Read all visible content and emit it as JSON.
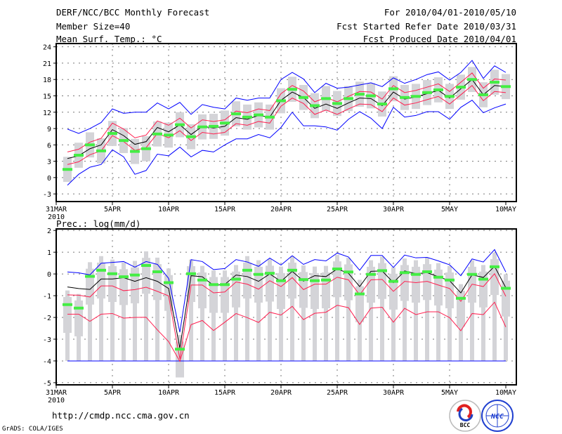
{
  "header": {
    "title": "DERF/NCC/BCC Monthly Forecast",
    "member_size": "Member Size=40",
    "variable": "Mean Surf. Temp.: °C",
    "period": "For 2010/04/01-2010/05/10",
    "fcst_started": "Fcst Started Refer Date 2010/03/31",
    "fcst_produced": "Fcst Produced Date 2010/04/01"
  },
  "footer": {
    "url": "http://cmdp.ncc.cma.gov.cn",
    "credit": "GrADS: COLA/IGES",
    "logo_bcc": "BCC",
    "logo_ncc": "NCC"
  },
  "colors": {
    "max_min": "#0000ff",
    "spread": "#ff1f4f",
    "mean": "#000000",
    "observed": "#44ee44",
    "box": "#d4d4d8"
  },
  "chart_data": [
    {
      "type": "line",
      "title": "Mean Surf. Temp.: °C",
      "xlabel": "",
      "ylabel": "°C",
      "x_ticks": [
        "31MAR",
        "5APR",
        "10APR",
        "15APR",
        "20APR",
        "25APR",
        "30APR",
        "5MAY",
        "10MAY"
      ],
      "x_year": "2010",
      "y_ticks": [
        "24",
        "21",
        "18",
        "15",
        "12",
        "9",
        "6",
        "3",
        "0",
        "-3"
      ],
      "ylim": [
        -4.4,
        24.6
      ],
      "grid": true,
      "x_days": "2010-04-01 to 2010-05-10 (40 days)",
      "gray_bar_halfrange": 2.3,
      "series": [
        {
          "name": "max",
          "color": "#0000ff",
          "values": [
            8.9,
            8.1,
            9.0,
            10.1,
            12.6,
            11.8,
            12.0,
            12.0,
            13.7,
            12.6,
            13.8,
            11.6,
            13.4,
            12.9,
            12.6,
            14.6,
            14.2,
            14.6,
            14.6,
            18.0,
            19.3,
            18.1,
            15.6,
            17.3,
            16.4,
            16.6,
            17.0,
            17.4,
            16.7,
            18.3,
            17.3,
            18.0,
            18.9,
            19.4,
            17.9,
            19.3,
            21.5,
            18.2,
            20.5,
            19.3
          ]
        },
        {
          "name": "upper",
          "color": "#ff1f4f",
          "values": [
            4.7,
            5.2,
            6.5,
            7.2,
            10.0,
            8.9,
            7.3,
            7.8,
            10.4,
            9.6,
            10.9,
            9.1,
            10.6,
            10.3,
            10.6,
            12.2,
            11.9,
            12.6,
            12.3,
            15.4,
            16.9,
            15.9,
            13.9,
            14.7,
            13.9,
            14.9,
            15.8,
            15.7,
            14.4,
            16.9,
            15.6,
            16.0,
            16.6,
            17.2,
            15.8,
            17.5,
            19.2,
            16.4,
            18.1,
            17.9
          ]
        },
        {
          "name": "mean",
          "color": "#000000",
          "values": [
            3.5,
            4.0,
            5.3,
            6.0,
            8.8,
            7.7,
            6.1,
            6.6,
            9.2,
            8.4,
            9.7,
            7.9,
            9.4,
            9.1,
            9.4,
            11.0,
            10.7,
            11.4,
            11.1,
            14.2,
            15.7,
            14.7,
            12.7,
            13.5,
            12.7,
            13.7,
            14.6,
            14.5,
            13.2,
            15.7,
            14.4,
            14.8,
            15.4,
            16.0,
            14.6,
            16.3,
            18.0,
            15.2,
            16.9,
            16.7
          ]
        },
        {
          "name": "lower",
          "color": "#ff1f4f",
          "values": [
            2.4,
            2.9,
            4.2,
            4.9,
            7.7,
            6.6,
            5.0,
            5.5,
            8.1,
            7.3,
            8.6,
            6.8,
            8.3,
            8.0,
            8.3,
            9.9,
            9.6,
            10.3,
            10.0,
            13.1,
            14.6,
            13.6,
            11.6,
            12.4,
            11.6,
            12.6,
            13.5,
            13.4,
            12.1,
            14.6,
            13.3,
            13.7,
            14.3,
            14.9,
            13.5,
            15.2,
            16.9,
            14.1,
            15.8,
            15.6
          ]
        },
        {
          "name": "min",
          "color": "#0000ff",
          "values": [
            -1.4,
            0.6,
            1.9,
            2.4,
            5.1,
            3.8,
            0.6,
            1.3,
            4.3,
            4.0,
            5.6,
            3.8,
            5.0,
            4.7,
            6.0,
            7.1,
            7.1,
            7.9,
            7.3,
            9.2,
            12.0,
            9.5,
            9.5,
            9.3,
            8.7,
            10.7,
            12.1,
            10.9,
            9.0,
            12.9,
            11.1,
            11.4,
            12.1,
            12.1,
            10.7,
            12.9,
            14.2,
            11.9,
            12.8,
            13.5
          ]
        },
        {
          "name": "observed",
          "color": "#44ee44",
          "values": [
            1.5,
            4.1,
            6.0,
            4.9,
            8.1,
            6.8,
            4.8,
            5.3,
            8.0,
            7.8,
            9.7,
            7.5,
            9.3,
            9.4,
            10.0,
            11.7,
            11.1,
            11.5,
            11.1,
            14.1,
            16.2,
            14.7,
            13.2,
            14.5,
            13.6,
            14.5,
            15.3,
            15.0,
            13.5,
            16.3,
            14.7,
            14.9,
            15.6,
            16.1,
            14.9,
            16.6,
            18.0,
            15.2,
            17.5,
            16.7
          ]
        }
      ]
    },
    {
      "type": "line",
      "title": "Prec.: log(mm/d)",
      "xlabel": "",
      "ylabel": "log(mm/d)",
      "x_ticks": [
        "31MAR",
        "5APR",
        "10APR",
        "15APR",
        "20APR",
        "25APR",
        "30APR",
        "5MAY",
        "10MAY"
      ],
      "x_year": "2010",
      "y_ticks": [
        "2",
        "1",
        "0",
        "-1",
        "-2",
        "-3",
        "-4",
        "-5"
      ],
      "ylim": [
        -5.1,
        2.07
      ],
      "grid": true,
      "box_below": 1.3,
      "box_above": 0.35,
      "whisker_low": -4,
      "series": [
        {
          "name": "max",
          "color": "#0000ff",
          "values": [
            0.09,
            0.05,
            -0.04,
            0.49,
            0.53,
            0.57,
            0.31,
            0.57,
            0.44,
            -0.2,
            -2.68,
            0.66,
            0.57,
            0.2,
            0.25,
            0.66,
            0.55,
            0.35,
            0.73,
            0.41,
            0.84,
            0.44,
            0.66,
            0.6,
            0.96,
            0.78,
            0.17,
            0.85,
            0.85,
            0.3,
            0.87,
            0.74,
            0.76,
            0.6,
            0.42,
            -0.08,
            0.69,
            0.55,
            1.12,
            0.09
          ]
        },
        {
          "name": "upper",
          "color": "#ff1f4f",
          "values": [
            -0.96,
            -0.98,
            -1.06,
            -0.55,
            -0.55,
            -0.77,
            -0.72,
            -0.61,
            -0.8,
            -1.01,
            -3.91,
            -0.51,
            -0.51,
            -0.87,
            -0.83,
            -0.37,
            -0.47,
            -0.7,
            -0.31,
            -0.58,
            -0.17,
            -0.72,
            -0.47,
            -0.47,
            -0.15,
            -0.27,
            -0.96,
            -0.27,
            -0.25,
            -0.8,
            -0.34,
            -0.4,
            -0.34,
            -0.51,
            -0.67,
            -1.26,
            -0.47,
            -0.58,
            0.01,
            -1.03
          ]
        },
        {
          "name": "mean",
          "color": "#000000",
          "values": [
            -0.6,
            -0.67,
            -0.71,
            -0.23,
            -0.23,
            -0.17,
            -0.34,
            -0.17,
            -0.34,
            -0.67,
            -3.41,
            -0.08,
            -0.13,
            -0.53,
            -0.48,
            -0.05,
            -0.12,
            -0.34,
            0.0,
            -0.34,
            0.12,
            -0.33,
            -0.08,
            -0.12,
            0.23,
            0.03,
            -0.58,
            0.12,
            0.14,
            -0.4,
            0.14,
            0.01,
            0.06,
            -0.13,
            -0.31,
            -0.87,
            -0.04,
            -0.16,
            0.35,
            -0.63
          ]
        },
        {
          "name": "lower",
          "color": "#ff1f4f",
          "values": [
            -1.85,
            -1.85,
            -2.18,
            -1.85,
            -1.82,
            -2.03,
            -2.0,
            -1.99,
            -2.57,
            -3.11,
            -4.02,
            -2.33,
            -2.14,
            -2.6,
            -2.22,
            -1.82,
            -2.01,
            -2.23,
            -1.76,
            -1.89,
            -1.49,
            -2.1,
            -1.81,
            -1.76,
            -1.44,
            -1.55,
            -2.32,
            -1.57,
            -1.53,
            -2.22,
            -1.58,
            -1.87,
            -1.74,
            -1.74,
            -2.01,
            -2.61,
            -1.82,
            -1.87,
            -1.3,
            -2.44
          ]
        },
        {
          "name": "min",
          "color": "#0000ff",
          "values": [
            -4,
            -4,
            -4,
            -4,
            -4,
            -4,
            -4,
            -4,
            -4,
            -4,
            -4,
            -4,
            -4,
            -4,
            -4,
            -4,
            -4,
            -4,
            -4,
            -4,
            -4,
            -4,
            -4,
            -4,
            -4,
            -4,
            -4,
            -4,
            -4,
            -4,
            -4,
            -4,
            -4,
            -4,
            -4,
            -4,
            -4,
            -4,
            -4,
            -4
          ]
        },
        {
          "name": "observed",
          "color": "#44ee44",
          "values": [
            -1.41,
            -1.57,
            -0.11,
            0.17,
            0.01,
            -0.13,
            -0.05,
            0.39,
            0.1,
            -0.4,
            -3.46,
            0.01,
            -0.28,
            -0.49,
            -0.49,
            -0.24,
            0.17,
            -0.02,
            0.03,
            -0.31,
            0.17,
            -0.26,
            -0.31,
            -0.28,
            0.23,
            0.09,
            -0.92,
            -0.02,
            0.15,
            -0.34,
            0.06,
            -0.02,
            0.1,
            -0.15,
            -0.28,
            -1.12,
            -0.02,
            -0.24,
            0.33,
            -0.66
          ]
        }
      ]
    }
  ]
}
